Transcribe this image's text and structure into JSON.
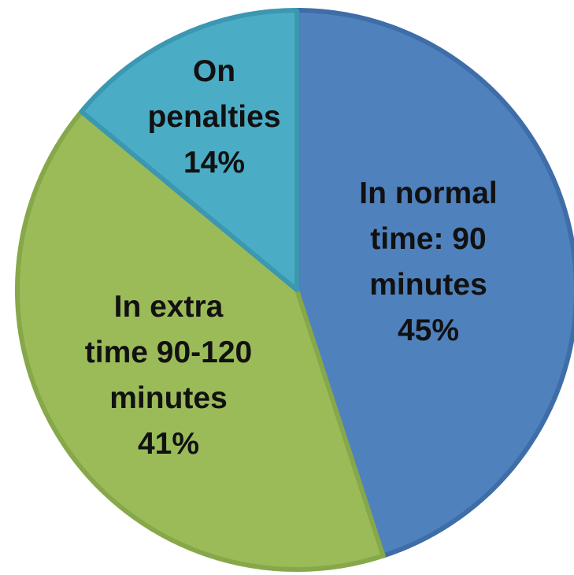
{
  "chart_data": {
    "type": "pie",
    "title": "",
    "slices": [
      {
        "label_lines": [
          "In normal",
          "time: 90",
          "minutes"
        ],
        "percent_label": "45%",
        "value": 45,
        "color": "#4F81BD",
        "border": "#3E6DA8"
      },
      {
        "label_lines": [
          "In extra",
          "time 90-120",
          "minutes"
        ],
        "percent_label": "41%",
        "value": 41,
        "color": "#9BBB59",
        "border": "#86A84A"
      },
      {
        "label_lines": [
          "On",
          "penalties"
        ],
        "percent_label": "14%",
        "value": 14,
        "color": "#4BACC6",
        "border": "#3C97B0"
      }
    ],
    "start": "12 o'clock",
    "direction": "clockwise",
    "legend": "none",
    "labels_inside": true
  }
}
